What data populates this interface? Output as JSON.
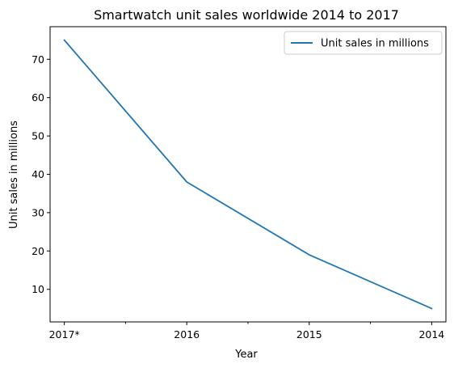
{
  "chart_data": {
    "type": "line",
    "title": "Smartwatch unit sales worldwide 2014 to 2017",
    "xlabel": "Year",
    "ylabel": "Unit sales in millions",
    "categories": [
      "2017*",
      "2016",
      "2015",
      "2014"
    ],
    "series": [
      {
        "name": "Unit sales in millions",
        "values": [
          75,
          38,
          19,
          5
        ],
        "color": "#1f77b4"
      }
    ],
    "ylim": [
      1.5,
      78.5
    ],
    "yticks": [
      10,
      20,
      30,
      40,
      50,
      60,
      70
    ],
    "grid": false,
    "legend": "top-right"
  }
}
